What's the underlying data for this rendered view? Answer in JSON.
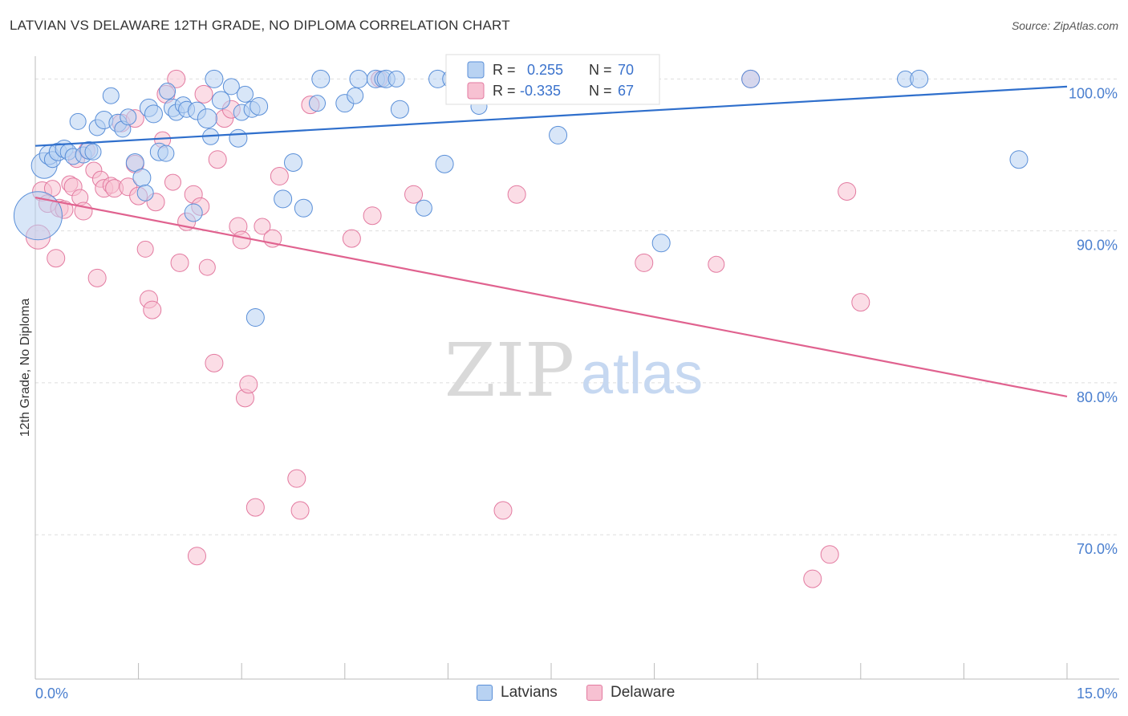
{
  "header": {
    "title": "LATVIAN VS DELAWARE 12TH GRADE, NO DIPLOMA CORRELATION CHART",
    "source": "Source: ZipAtlas.com"
  },
  "watermark": {
    "zip": "ZIP",
    "atlas": "atlas"
  },
  "colors": {
    "blue_fill": "#b8d2f2",
    "blue_stroke": "#5a8fd8",
    "blue_line": "#2f6fcc",
    "pink_fill": "#f7c1d2",
    "pink_stroke": "#e37aa0",
    "pink_line": "#e0628f",
    "axis_text": "#4a7fcf",
    "grid": "#dddddd"
  },
  "legend": {
    "latvians": {
      "r_label": "R =",
      "r_value": "0.255",
      "n_label": "N =",
      "n_value": "70"
    },
    "delaware": {
      "r_label": "R =",
      "r_value": "-0.335",
      "n_label": "N =",
      "n_value": "67"
    }
  },
  "chart_data": {
    "type": "scatter",
    "title": "LATVIAN VS DELAWARE 12TH GRADE, NO DIPLOMA CORRELATION CHART",
    "xlabel": "",
    "ylabel": "12th Grade, No Diploma",
    "xlim": [
      0,
      15
    ],
    "ylim": [
      60.5,
      101.5
    ],
    "x_tick_labels": [
      {
        "value": 0,
        "label": "0.0%"
      },
      {
        "value": 15,
        "label": "15.0%"
      }
    ],
    "y_tick_labels": [
      {
        "value": 100,
        "label": "100.0%"
      },
      {
        "value": 90,
        "label": "90.0%"
      },
      {
        "value": 80,
        "label": "80.0%"
      },
      {
        "value": 70,
        "label": "70.0%"
      }
    ],
    "grid": true,
    "legend_position": "top-center",
    "series": [
      {
        "name": "Latvians",
        "color": "#5a8fd8",
        "r": 0.255,
        "n": 70,
        "trend": {
          "x": [
            0,
            15
          ],
          "y": [
            95.6,
            99.5
          ]
        },
        "points": [
          [
            0.04,
            91.0,
            30
          ],
          [
            0.13,
            94.3,
            16
          ],
          [
            0.2,
            95.0,
            12
          ],
          [
            0.25,
            94.7,
            10
          ],
          [
            0.33,
            95.2,
            11
          ],
          [
            0.42,
            95.4,
            11
          ],
          [
            0.48,
            95.2,
            10
          ],
          [
            0.55,
            94.9,
            10
          ],
          [
            0.62,
            97.2,
            10
          ],
          [
            0.7,
            95.0,
            10
          ],
          [
            0.78,
            95.3,
            11
          ],
          [
            0.84,
            95.2,
            10
          ],
          [
            0.9,
            96.8,
            10
          ],
          [
            1.0,
            97.3,
            11
          ],
          [
            1.1,
            98.9,
            10
          ],
          [
            1.2,
            97.1,
            11
          ],
          [
            1.27,
            96.7,
            10
          ],
          [
            1.35,
            97.5,
            10
          ],
          [
            1.45,
            94.5,
            11
          ],
          [
            1.55,
            93.5,
            11
          ],
          [
            1.6,
            92.5,
            10
          ],
          [
            1.65,
            98.1,
            11
          ],
          [
            1.72,
            97.7,
            11
          ],
          [
            1.8,
            95.2,
            11
          ],
          [
            1.9,
            95.1,
            10
          ],
          [
            1.92,
            99.2,
            10
          ],
          [
            2.0,
            98.1,
            11
          ],
          [
            2.05,
            97.8,
            10
          ],
          [
            2.15,
            98.3,
            10
          ],
          [
            2.2,
            98.0,
            10
          ],
          [
            2.3,
            91.2,
            11
          ],
          [
            2.35,
            97.9,
            11
          ],
          [
            2.5,
            97.4,
            12
          ],
          [
            2.55,
            96.2,
            10
          ],
          [
            2.6,
            100.0,
            11
          ],
          [
            2.7,
            98.6,
            11
          ],
          [
            2.85,
            99.5,
            10
          ],
          [
            2.95,
            96.1,
            11
          ],
          [
            3.0,
            97.8,
            10
          ],
          [
            3.05,
            99.0,
            10
          ],
          [
            3.15,
            98.0,
            10
          ],
          [
            3.2,
            84.3,
            11
          ],
          [
            3.25,
            98.2,
            11
          ],
          [
            3.6,
            92.1,
            11
          ],
          [
            3.75,
            94.5,
            11
          ],
          [
            3.9,
            91.5,
            11
          ],
          [
            4.1,
            98.4,
            10
          ],
          [
            4.15,
            100.0,
            11
          ],
          [
            4.5,
            98.4,
            11
          ],
          [
            4.65,
            98.9,
            10
          ],
          [
            4.7,
            100.0,
            11
          ],
          [
            4.95,
            100.0,
            11
          ],
          [
            5.05,
            100.0,
            10
          ],
          [
            5.1,
            100.0,
            11
          ],
          [
            5.25,
            100.0,
            10
          ],
          [
            5.3,
            98.0,
            11
          ],
          [
            5.65,
            91.5,
            10
          ],
          [
            5.85,
            100.0,
            11
          ],
          [
            5.95,
            94.4,
            11
          ],
          [
            6.05,
            100.0,
            11
          ],
          [
            6.45,
            98.2,
            10
          ],
          [
            6.6,
            100.0,
            10
          ],
          [
            7.6,
            96.3,
            11
          ],
          [
            8.0,
            100.0,
            10
          ],
          [
            9.1,
            89.2,
            11
          ],
          [
            10.4,
            100.0,
            11
          ],
          [
            12.65,
            100.0,
            10
          ],
          [
            12.85,
            100.0,
            11
          ],
          [
            14.3,
            94.7,
            11
          ],
          [
            8.3,
            98.9,
            10
          ]
        ]
      },
      {
        "name": "Delaware",
        "color": "#e37aa0",
        "r": -0.335,
        "n": 67,
        "trend": {
          "x": [
            0,
            15
          ],
          "y": [
            92.2,
            79.1
          ]
        },
        "points": [
          [
            0.04,
            89.6,
            15
          ],
          [
            0.1,
            92.6,
            12
          ],
          [
            0.18,
            91.8,
            11
          ],
          [
            0.25,
            92.8,
            10
          ],
          [
            0.3,
            88.2,
            11
          ],
          [
            0.35,
            91.5,
            11
          ],
          [
            0.42,
            91.4,
            11
          ],
          [
            0.5,
            93.1,
            10
          ],
          [
            0.55,
            92.9,
            11
          ],
          [
            0.6,
            94.7,
            10
          ],
          [
            0.65,
            92.2,
            10
          ],
          [
            0.7,
            91.3,
            11
          ],
          [
            0.75,
            95.3,
            10
          ],
          [
            0.85,
            94.0,
            10
          ],
          [
            0.9,
            86.9,
            11
          ],
          [
            0.95,
            93.4,
            10
          ],
          [
            1.0,
            92.8,
            11
          ],
          [
            1.1,
            93.0,
            10
          ],
          [
            1.15,
            92.8,
            11
          ],
          [
            1.25,
            97.1,
            11
          ],
          [
            1.35,
            92.9,
            11
          ],
          [
            1.45,
            94.4,
            11
          ],
          [
            1.5,
            92.3,
            11
          ],
          [
            1.6,
            88.8,
            10
          ],
          [
            1.65,
            85.5,
            11
          ],
          [
            1.7,
            84.8,
            11
          ],
          [
            1.75,
            91.9,
            11
          ],
          [
            1.85,
            96.0,
            10
          ],
          [
            1.9,
            99.0,
            11
          ],
          [
            2.0,
            93.2,
            10
          ],
          [
            2.05,
            100.0,
            11
          ],
          [
            2.1,
            87.9,
            11
          ],
          [
            2.2,
            90.6,
            11
          ],
          [
            2.3,
            92.4,
            11
          ],
          [
            2.35,
            68.6,
            11
          ],
          [
            2.4,
            91.6,
            11
          ],
          [
            2.45,
            99.0,
            11
          ],
          [
            2.5,
            87.6,
            10
          ],
          [
            2.6,
            81.3,
            11
          ],
          [
            2.65,
            94.7,
            11
          ],
          [
            2.75,
            97.4,
            11
          ],
          [
            2.85,
            98.0,
            11
          ],
          [
            2.95,
            90.3,
            11
          ],
          [
            3.0,
            89.4,
            11
          ],
          [
            3.05,
            79.0,
            11
          ],
          [
            3.1,
            79.9,
            11
          ],
          [
            3.2,
            71.8,
            11
          ],
          [
            3.3,
            90.3,
            10
          ],
          [
            3.45,
            89.5,
            11
          ],
          [
            3.55,
            93.6,
            11
          ],
          [
            3.8,
            73.7,
            11
          ],
          [
            3.85,
            71.6,
            11
          ],
          [
            4.0,
            98.3,
            11
          ],
          [
            4.6,
            89.5,
            11
          ],
          [
            4.9,
            91.0,
            11
          ],
          [
            5.0,
            100.0,
            10
          ],
          [
            5.5,
            92.4,
            11
          ],
          [
            6.8,
            71.6,
            11
          ],
          [
            7.0,
            92.4,
            11
          ],
          [
            8.85,
            87.9,
            11
          ],
          [
            9.9,
            87.8,
            10
          ],
          [
            10.4,
            100.0,
            11
          ],
          [
            11.3,
            67.1,
            11
          ],
          [
            11.55,
            68.7,
            11
          ],
          [
            11.8,
            92.6,
            11
          ],
          [
            12.0,
            85.3,
            11
          ],
          [
            1.45,
            97.4,
            11
          ]
        ]
      }
    ]
  },
  "bottom_legend": {
    "latvians": "Latvians",
    "delaware": "Delaware"
  }
}
